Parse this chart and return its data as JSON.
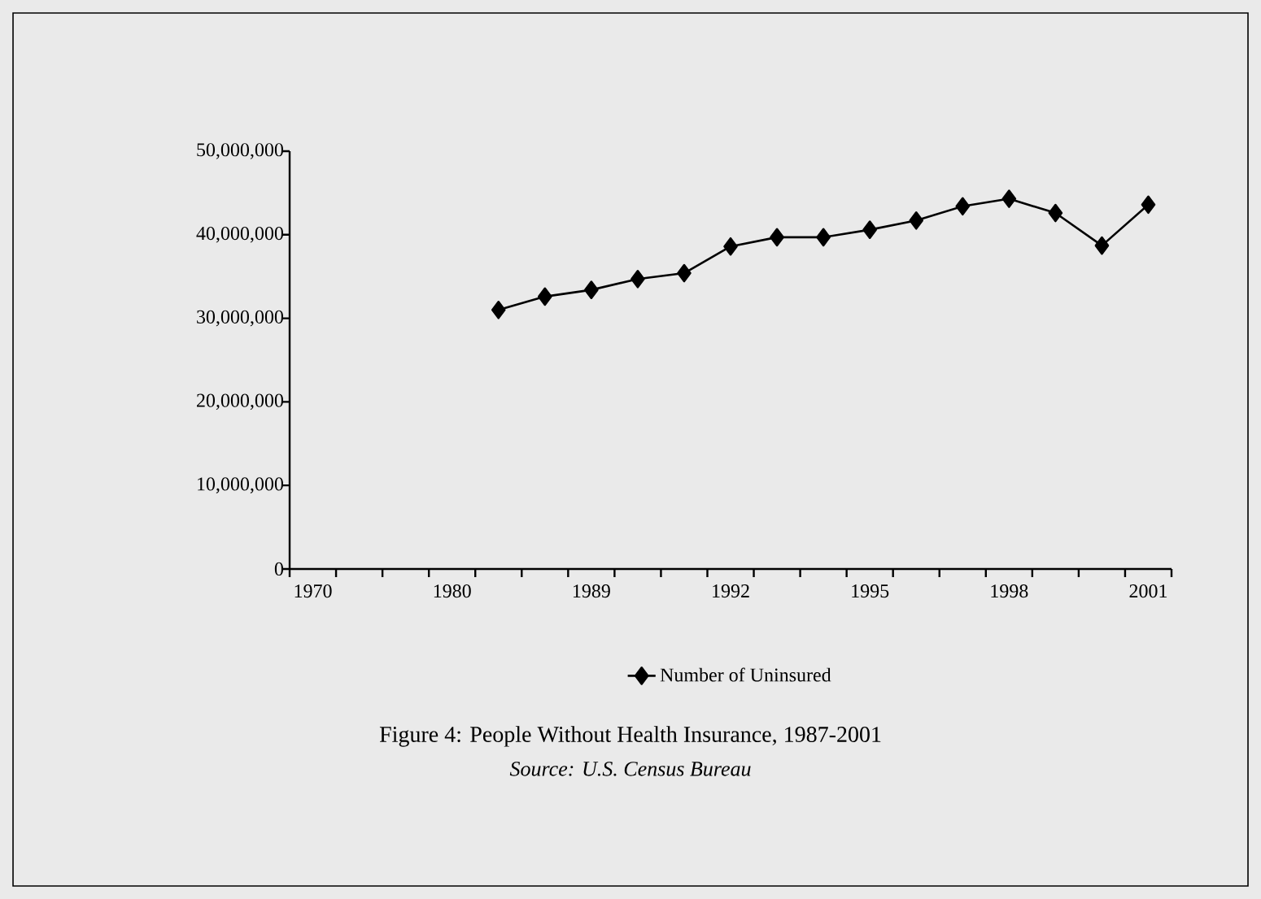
{
  "chart_data": {
    "type": "line",
    "title": "Figure 4: People Without Health Insurance, 1987-2001",
    "annotations": [
      "Source: U.S. Census Bureau"
    ],
    "categories": [
      "1970",
      null,
      null,
      "1980",
      null,
      null,
      "1989",
      null,
      null,
      "1992",
      null,
      null,
      "1995",
      null,
      null,
      "1998",
      null,
      null,
      "2001"
    ],
    "series": [
      {
        "name": "Number of Uninsured",
        "color": "#000000",
        "values": [
          null,
          null,
          null,
          null,
          31000000,
          32600000,
          33400000,
          34700000,
          35400000,
          38600000,
          39700000,
          39700000,
          40600000,
          41700000,
          43400000,
          44300000,
          42600000,
          38700000,
          43600000
        ]
      }
    ],
    "ylim": [
      0,
      50000000
    ],
    "yticks": [
      {
        "value": 0,
        "label": "0"
      },
      {
        "value": 10000000,
        "label": "10,000,000"
      },
      {
        "value": 20000000,
        "label": "20,000,000"
      },
      {
        "value": 30000000,
        "label": "30,000,000"
      },
      {
        "value": 40000000,
        "label": "40,000,000"
      },
      {
        "value": 50000000,
        "label": "50,000,000"
      }
    ],
    "marker": "diamond",
    "line_style": "solid",
    "legend": "bottom",
    "grid": false
  }
}
